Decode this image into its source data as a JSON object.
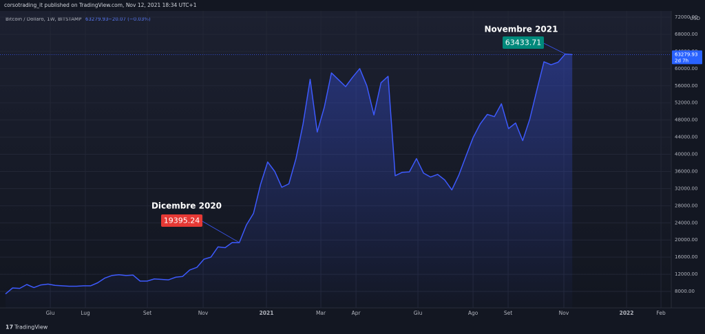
{
  "header": "corsotrading_it published on TradingView.com, Nov 12, 2021 18:34 UTC+1",
  "footer": "TradingView",
  "chart_data": {
    "type": "line",
    "symbol": "Bitcoin / Dollaro, 1W, BITSTAMP",
    "change": "−20.07 (−0.03%)",
    "countdown": "2d 7h",
    "currency": "USD",
    "grid": true,
    "x": [
      0,
      1,
      2,
      3,
      4,
      5,
      6,
      7,
      8,
      9,
      10,
      11,
      12,
      13,
      14,
      15,
      16,
      17,
      18,
      19,
      20,
      21,
      22,
      23,
      24,
      25,
      26,
      27,
      28,
      29,
      30,
      31,
      32,
      33,
      34,
      35,
      36,
      37,
      38,
      39,
      40,
      41,
      42,
      43,
      44,
      45,
      46,
      47,
      48,
      49,
      50,
      51,
      52,
      53,
      54,
      55,
      56,
      57,
      58,
      59,
      60,
      61,
      62,
      63,
      64,
      65,
      66,
      67,
      68,
      69,
      70,
      71,
      72,
      73,
      74,
      75,
      76,
      77,
      78,
      79,
      80
    ],
    "series": [
      {
        "name": "Bitcoin / Dollaro",
        "color": "#3d5afe",
        "values": [
          7400,
          8800,
          8700,
          9600,
          8900,
          9500,
          9700,
          9400,
          9300,
          9200,
          9200,
          9300,
          9300,
          10000,
          11100,
          11700,
          11900,
          11700,
          11800,
          10400,
          10400,
          10900,
          10800,
          10700,
          11300,
          11500,
          13000,
          13600,
          15500,
          16000,
          18400,
          18200,
          19400,
          19395,
          23500,
          26200,
          33000,
          38200,
          36000,
          32300,
          33100,
          39000,
          47100,
          57500,
          45200,
          51000,
          59000,
          57400,
          55800,
          58000,
          60000,
          56000,
          49200,
          56700,
          58200,
          35000,
          35800,
          35900,
          39000,
          35600,
          34700,
          35300,
          34000,
          31700,
          35200,
          39600,
          43900,
          47100,
          49300,
          48800,
          51800,
          46000,
          47300,
          43200,
          48200,
          55000,
          61600,
          60900,
          61500,
          63400,
          63279.93
        ]
      }
    ],
    "xlim": [
      -0.78,
      93.97
    ],
    "xticks": [
      {
        "value": 6.32,
        "label": "Giu"
      },
      {
        "value": 11.27,
        "label": "Lug"
      },
      {
        "value": 20.02,
        "label": "Set"
      },
      {
        "value": 27.89,
        "label": "Nov"
      },
      {
        "value": 36.83,
        "label": "2021"
      },
      {
        "value": 44.51,
        "label": "Mar"
      },
      {
        "value": 49.47,
        "label": "Apr"
      },
      {
        "value": 58.21,
        "label": "Giu"
      },
      {
        "value": 65.99,
        "label": "Ago"
      },
      {
        "value": 70.94,
        "label": "Set"
      },
      {
        "value": 78.81,
        "label": "Nov"
      },
      {
        "value": 87.66,
        "label": "2022"
      },
      {
        "value": 92.52,
        "label": "Feb"
      }
    ],
    "ylim": [
      4150,
      73450
    ],
    "yticks": [
      {
        "value": 8000,
        "label": "8000.00"
      },
      {
        "value": 12000,
        "label": "12000.00"
      },
      {
        "value": 16000,
        "label": "16000.00"
      },
      {
        "value": 20000,
        "label": "20000.00"
      },
      {
        "value": 24000,
        "label": "24000.00"
      },
      {
        "value": 28000,
        "label": "28000.00"
      },
      {
        "value": 32000,
        "label": "32000.00"
      },
      {
        "value": 36000,
        "label": "36000.00"
      },
      {
        "value": 40000,
        "label": "40000.00"
      },
      {
        "value": 44000,
        "label": "44000.00"
      },
      {
        "value": 48000,
        "label": "48000.00"
      },
      {
        "value": 52000,
        "label": "52000.00"
      },
      {
        "value": 56000,
        "label": "56000.00"
      },
      {
        "value": 60000,
        "label": "60000.00"
      },
      {
        "value": 64000,
        "label": "64000.00"
      },
      {
        "value": 68000,
        "label": "68000.00"
      },
      {
        "value": 72000,
        "label": "72000.00"
      }
    ],
    "annotations": [
      {
        "label": "Dicembre 2020",
        "price": 19395.24,
        "color": "#e53935"
      },
      {
        "label": "Novembre 2021",
        "price": 63433.71,
        "color": "#00897b"
      }
    ]
  }
}
